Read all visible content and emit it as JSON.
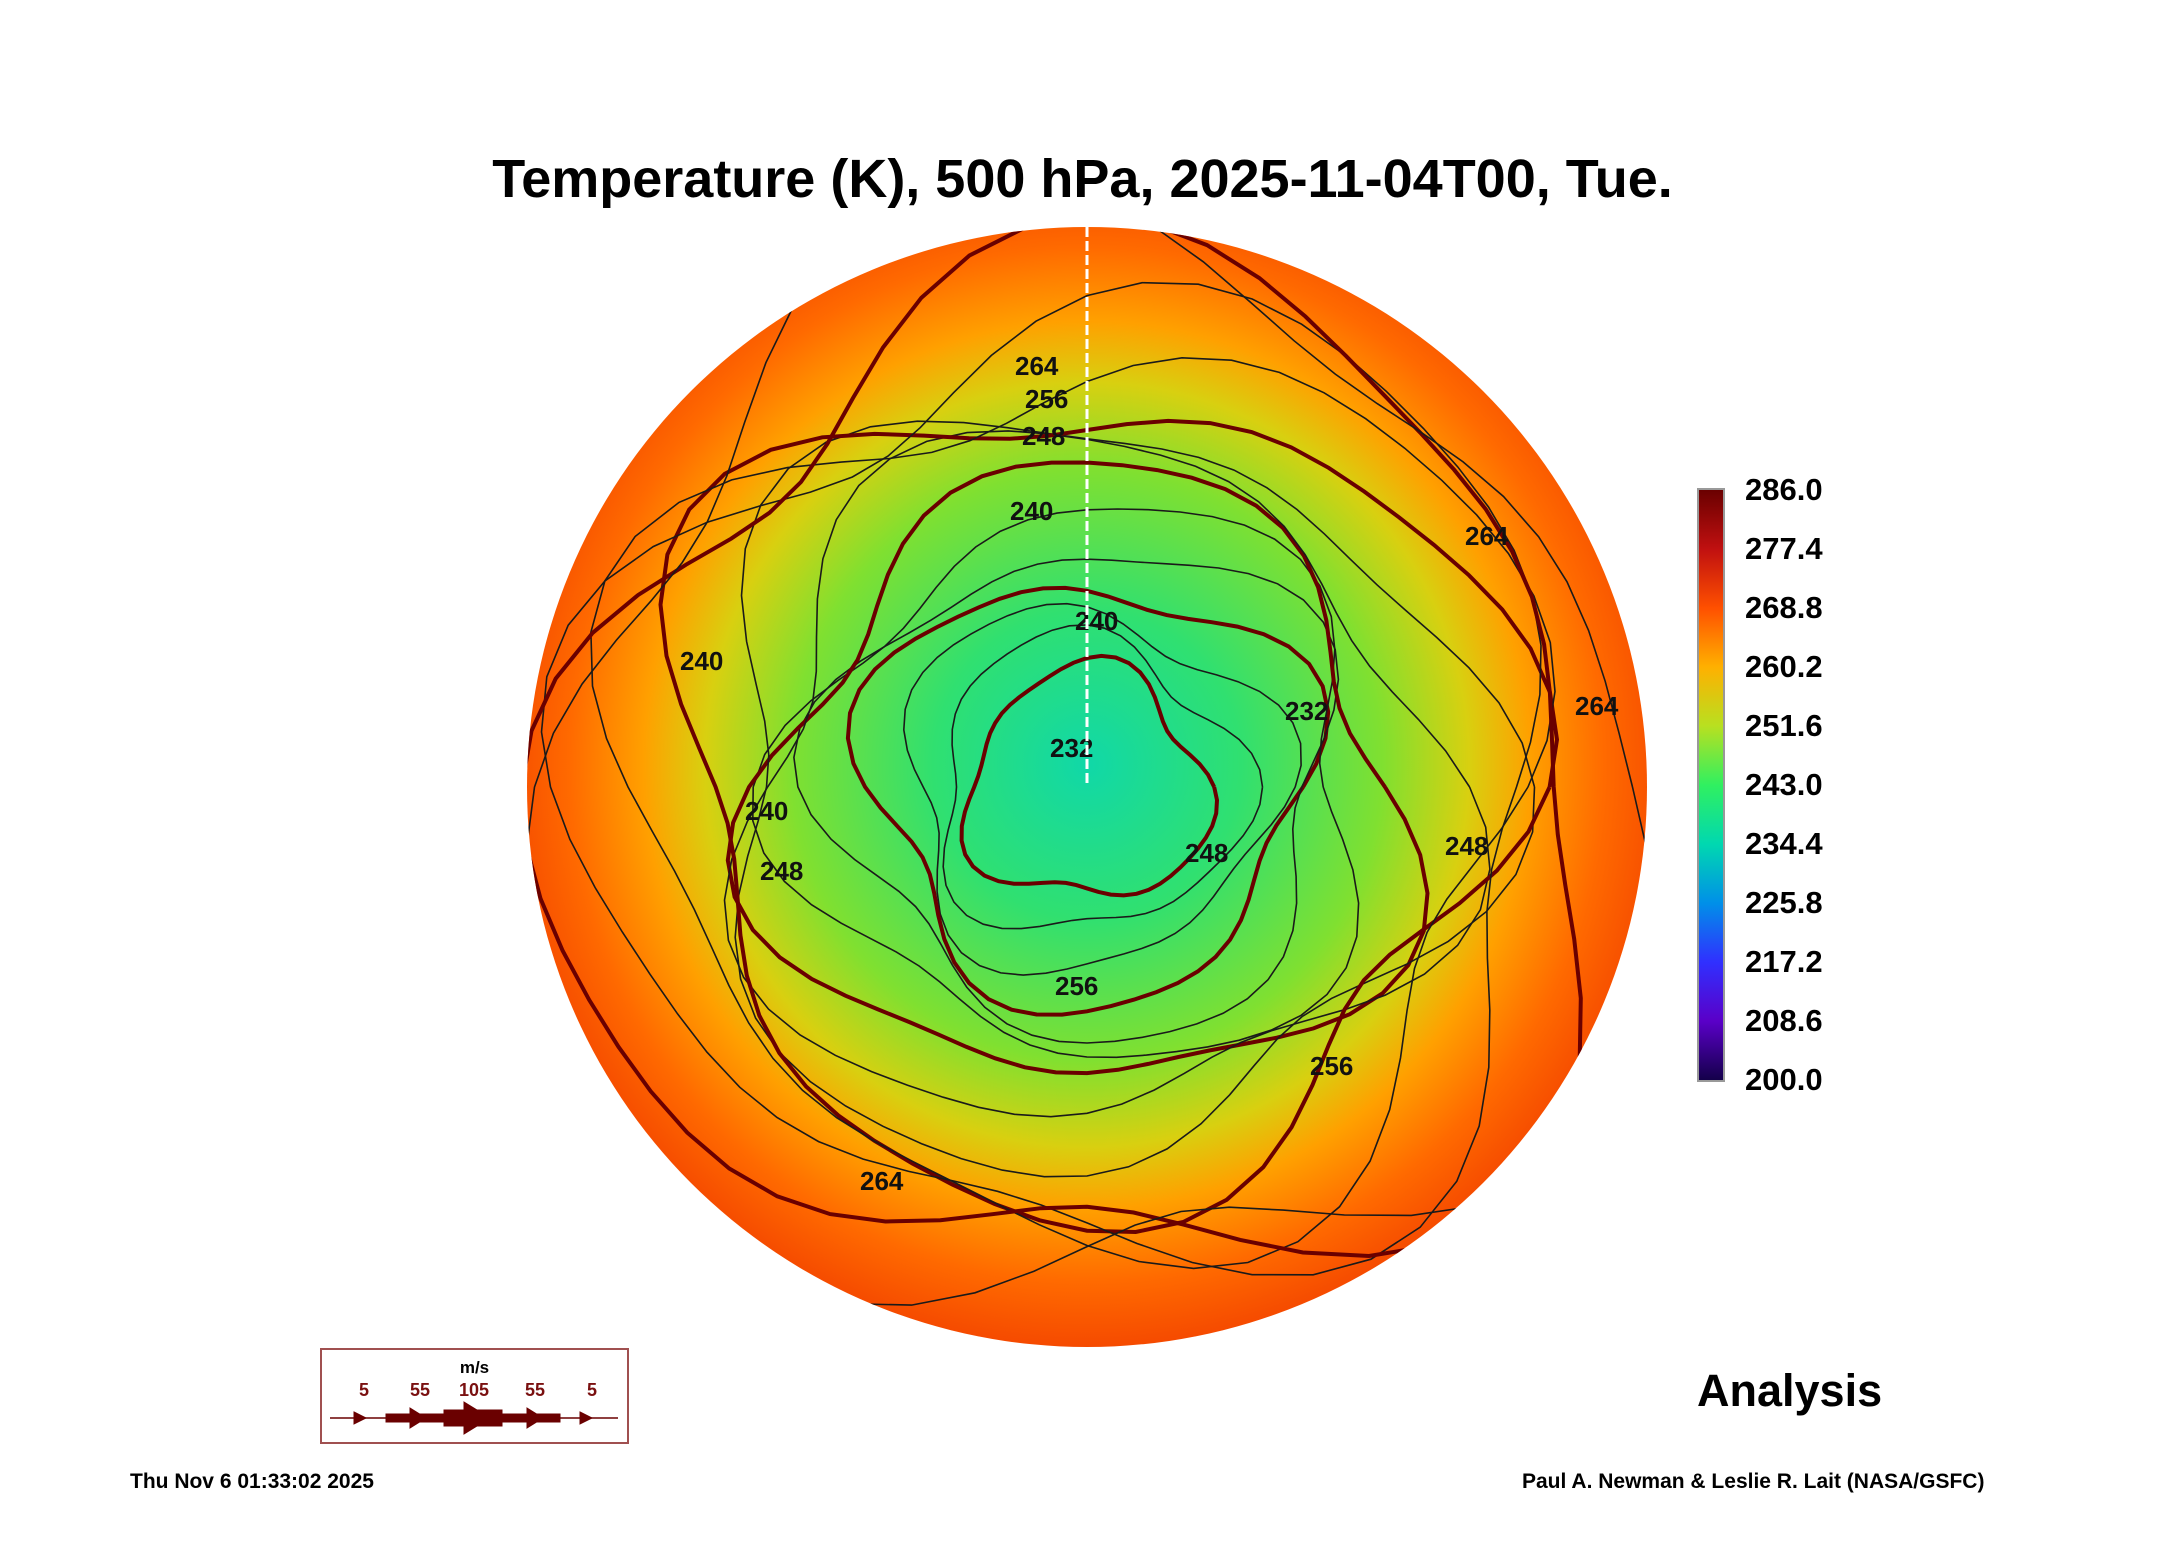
{
  "chart_data": {
    "type": "heatmap",
    "title": "Temperature (K), 500 hPa, 2025-11-04T00, Tue.",
    "projection": "north polar orthographic",
    "colorbar": {
      "ticks": [
        "286.0",
        "277.4",
        "268.8",
        "260.2",
        "251.6",
        "243.0",
        "234.4",
        "225.8",
        "217.2",
        "208.6",
        "200.0"
      ],
      "range": [
        200.0,
        286.0
      ]
    },
    "contour_labels": [
      "264",
      "256",
      "248",
      "240",
      "240",
      "232",
      "232",
      "240",
      "248",
      "248",
      "248",
      "256",
      "256",
      "264",
      "264",
      "264",
      "240"
    ],
    "wind_legend": {
      "unit": "m/s",
      "labels": [
        "5",
        "55",
        "105",
        "55",
        "5"
      ]
    },
    "product": "Analysis"
  },
  "colors": {
    "wind_arrows": "#6a0000",
    "coastlines": "#ffffff",
    "contours": "#1a1a1a"
  },
  "footer": {
    "timestamp": "Thu Nov  6 01:33:02 2025",
    "credit": "Paul A. Newman & Leslie R. Lait (NASA/GSFC)"
  }
}
